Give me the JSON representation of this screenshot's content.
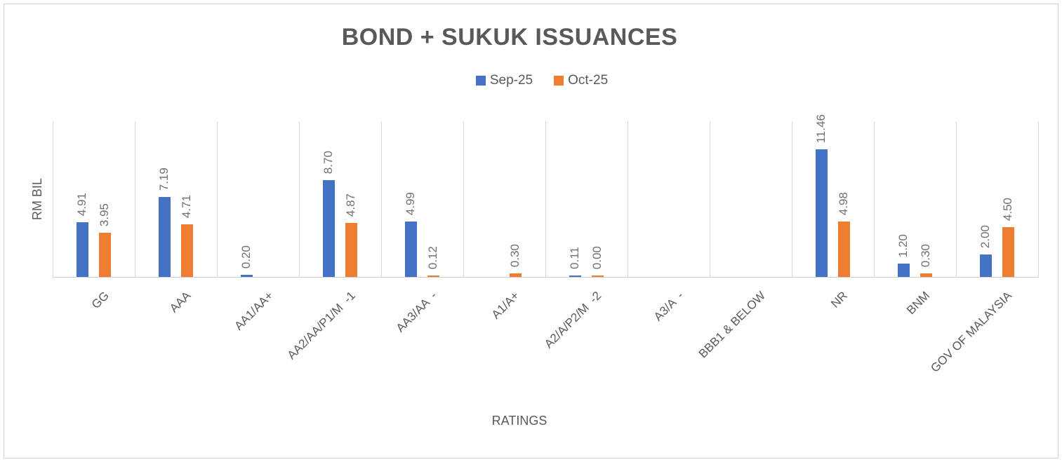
{
  "chart_data": {
    "type": "bar",
    "title": "BOND + SUKUK ISSUANCES",
    "xlabel": "RATINGS",
    "ylabel": "RM BIL",
    "ylim": [
      0,
      14
    ],
    "grid": "vertical-category-lines",
    "legend_position": "top",
    "value_label_format": "two-decimals",
    "categories": [
      "GG",
      "AAA",
      "AA1/AA+",
      "AA2/AA/P1/M  -1",
      "AA3/AA  -",
      "A1/A+",
      "A2/A/P2/M  -2",
      "A3/A  -",
      "BBB1 & BELOW",
      "NR",
      "BNM",
      "GOV OF MALAYSIA"
    ],
    "series": [
      {
        "name": "Sep-25",
        "color": "#4472C4",
        "values": [
          4.91,
          7.19,
          0.2,
          8.7,
          4.99,
          null,
          0.11,
          null,
          null,
          11.46,
          1.2,
          2.0
        ]
      },
      {
        "name": "Oct-25",
        "color": "#ED7D31",
        "values": [
          3.95,
          4.71,
          null,
          4.87,
          0.12,
          0.3,
          0.0,
          null,
          null,
          4.98,
          0.3,
          4.5
        ]
      }
    ]
  },
  "colors": {
    "title_text": "#595959",
    "axis_text": "#595959",
    "value_label_text": "#717171",
    "gridline": "#D9D9D9",
    "axis_line": "#CFCDCD",
    "border": "#D2D2D2",
    "series_sep_25": "#4472C4",
    "series_oct_25": "#ED7D31"
  }
}
